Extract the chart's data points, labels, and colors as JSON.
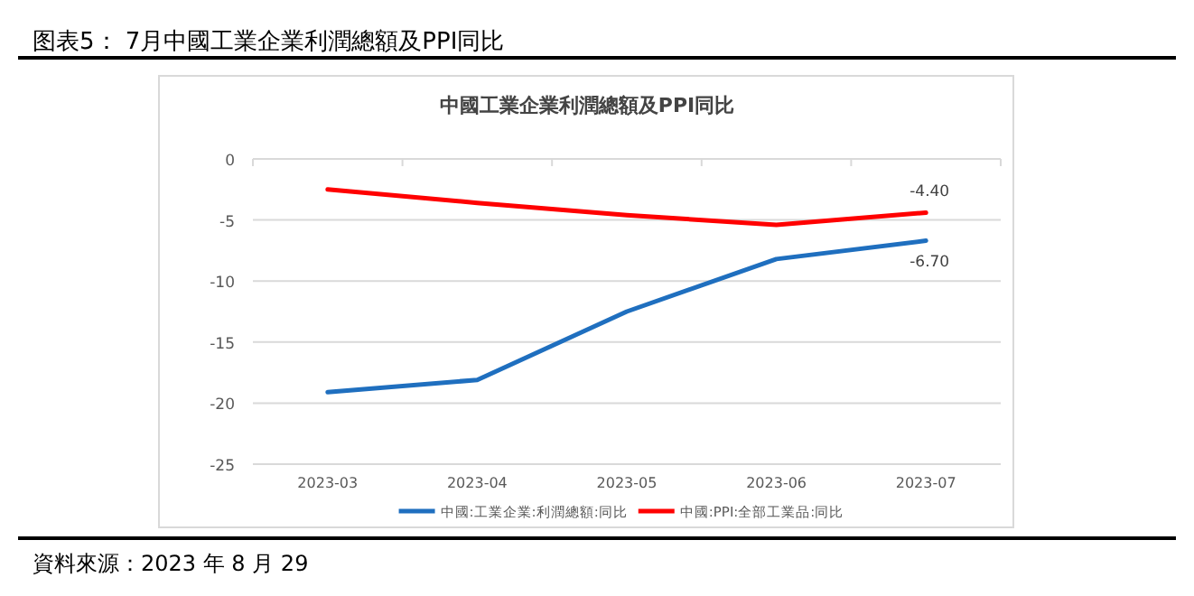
{
  "chart_data": {
    "type": "line",
    "title": "图表5： 7月中國工業企業利潤總額及PPI同比",
    "subtitle": "中國工業企業利潤總額及PPI同比",
    "categories": [
      "2023-03",
      "2023-04",
      "2023-05",
      "2023-06",
      "2023-07"
    ],
    "series": [
      {
        "name": "中國:工業企業:利潤總額:同比",
        "color": "#1f6fbf",
        "values": [
          -19.1,
          -18.1,
          -12.5,
          -8.2,
          -6.7
        ],
        "value_labels": [
          null,
          null,
          null,
          null,
          "-6.70"
        ]
      },
      {
        "name": "中國:PPI:全部工業品:同比",
        "color": "#ff0000",
        "values": [
          -2.5,
          -3.6,
          -4.6,
          -5.4,
          -4.4
        ],
        "value_labels": [
          null,
          null,
          null,
          null,
          "-4.40"
        ]
      }
    ],
    "ylim": [
      -25,
      0
    ],
    "yticks": [
      0,
      -5,
      -10,
      -15,
      -20,
      -25
    ],
    "grid": "y",
    "legend": "bottom",
    "marker": "none",
    "line_style": "solid",
    "annotations": [
      "資料來源：2023 年 8 月 29"
    ]
  }
}
